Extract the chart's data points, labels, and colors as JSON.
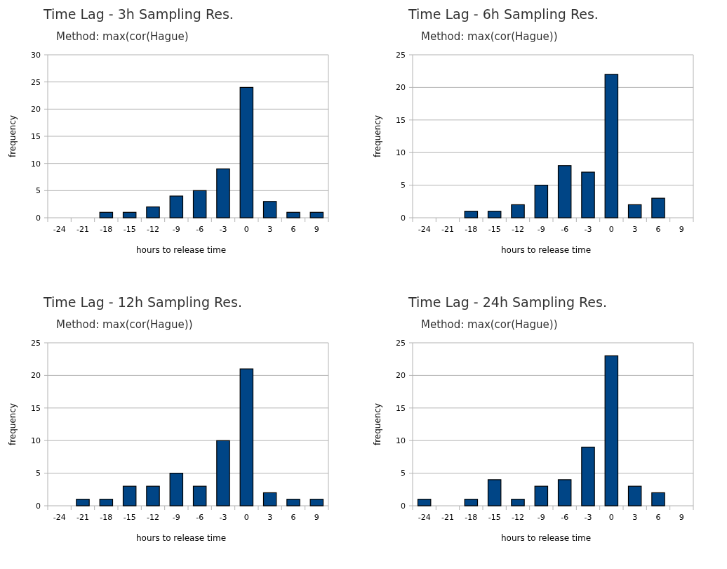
{
  "chart_data": [
    {
      "type": "bar",
      "title": "Time Lag - 3h Sampling Res.",
      "subtitle": "Method: max(cor(Hague)",
      "xlabel": "hours to release time",
      "ylabel": "frequency",
      "categories": [
        "-24",
        "-21",
        "-18",
        "-15",
        "-12",
        "-9",
        "-6",
        "-3",
        "0",
        "3",
        "6",
        "9"
      ],
      "values": [
        0,
        0,
        1,
        1,
        2,
        4,
        5,
        9,
        24,
        3,
        1,
        1
      ],
      "color": "#004586",
      "ylim": [
        0,
        30
      ],
      "yticks": [
        0,
        5,
        10,
        15,
        20,
        25,
        30
      ],
      "grid": "y"
    },
    {
      "type": "bar",
      "title": "Time Lag - 6h Sampling Res.",
      "subtitle": "Method: max(cor(Hague))",
      "xlabel": "hours to release time",
      "ylabel": "frequency",
      "categories": [
        "-24",
        "-21",
        "-18",
        "-15",
        "-12",
        "-9",
        "-6",
        "-3",
        "0",
        "3",
        "6",
        "9"
      ],
      "values": [
        0,
        0,
        1,
        1,
        2,
        5,
        8,
        7,
        22,
        2,
        3,
        0
      ],
      "color": "#004586",
      "ylim": [
        0,
        25
      ],
      "yticks": [
        0,
        5,
        10,
        15,
        20,
        25
      ],
      "grid": "y"
    },
    {
      "type": "bar",
      "title": "Time Lag - 12h Sampling Res.",
      "subtitle": "Method: max(cor(Hague))",
      "xlabel": "hours to release time",
      "ylabel": "frequency",
      "categories": [
        "-24",
        "-21",
        "-18",
        "-15",
        "-12",
        "-9",
        "-6",
        "-3",
        "0",
        "3",
        "6",
        "9"
      ],
      "values": [
        0,
        1,
        1,
        3,
        3,
        5,
        3,
        10,
        21,
        2,
        1,
        1
      ],
      "color": "#004586",
      "ylim": [
        0,
        25
      ],
      "yticks": [
        0,
        5,
        10,
        15,
        20,
        25
      ],
      "grid": "y"
    },
    {
      "type": "bar",
      "title": "Time Lag - 24h Sampling Res.",
      "subtitle": "Method: max(cor(Hague))",
      "xlabel": "hours to release time",
      "ylabel": "frequency",
      "categories": [
        "-24",
        "-21",
        "-18",
        "-15",
        "-12",
        "-9",
        "-6",
        "-3",
        "0",
        "3",
        "6",
        "9"
      ],
      "values": [
        1,
        0,
        1,
        4,
        1,
        3,
        4,
        9,
        23,
        3,
        2,
        0
      ],
      "color": "#004586",
      "ylim": [
        0,
        25
      ],
      "yticks": [
        0,
        5,
        10,
        15,
        20,
        25
      ],
      "grid": "y"
    }
  ]
}
